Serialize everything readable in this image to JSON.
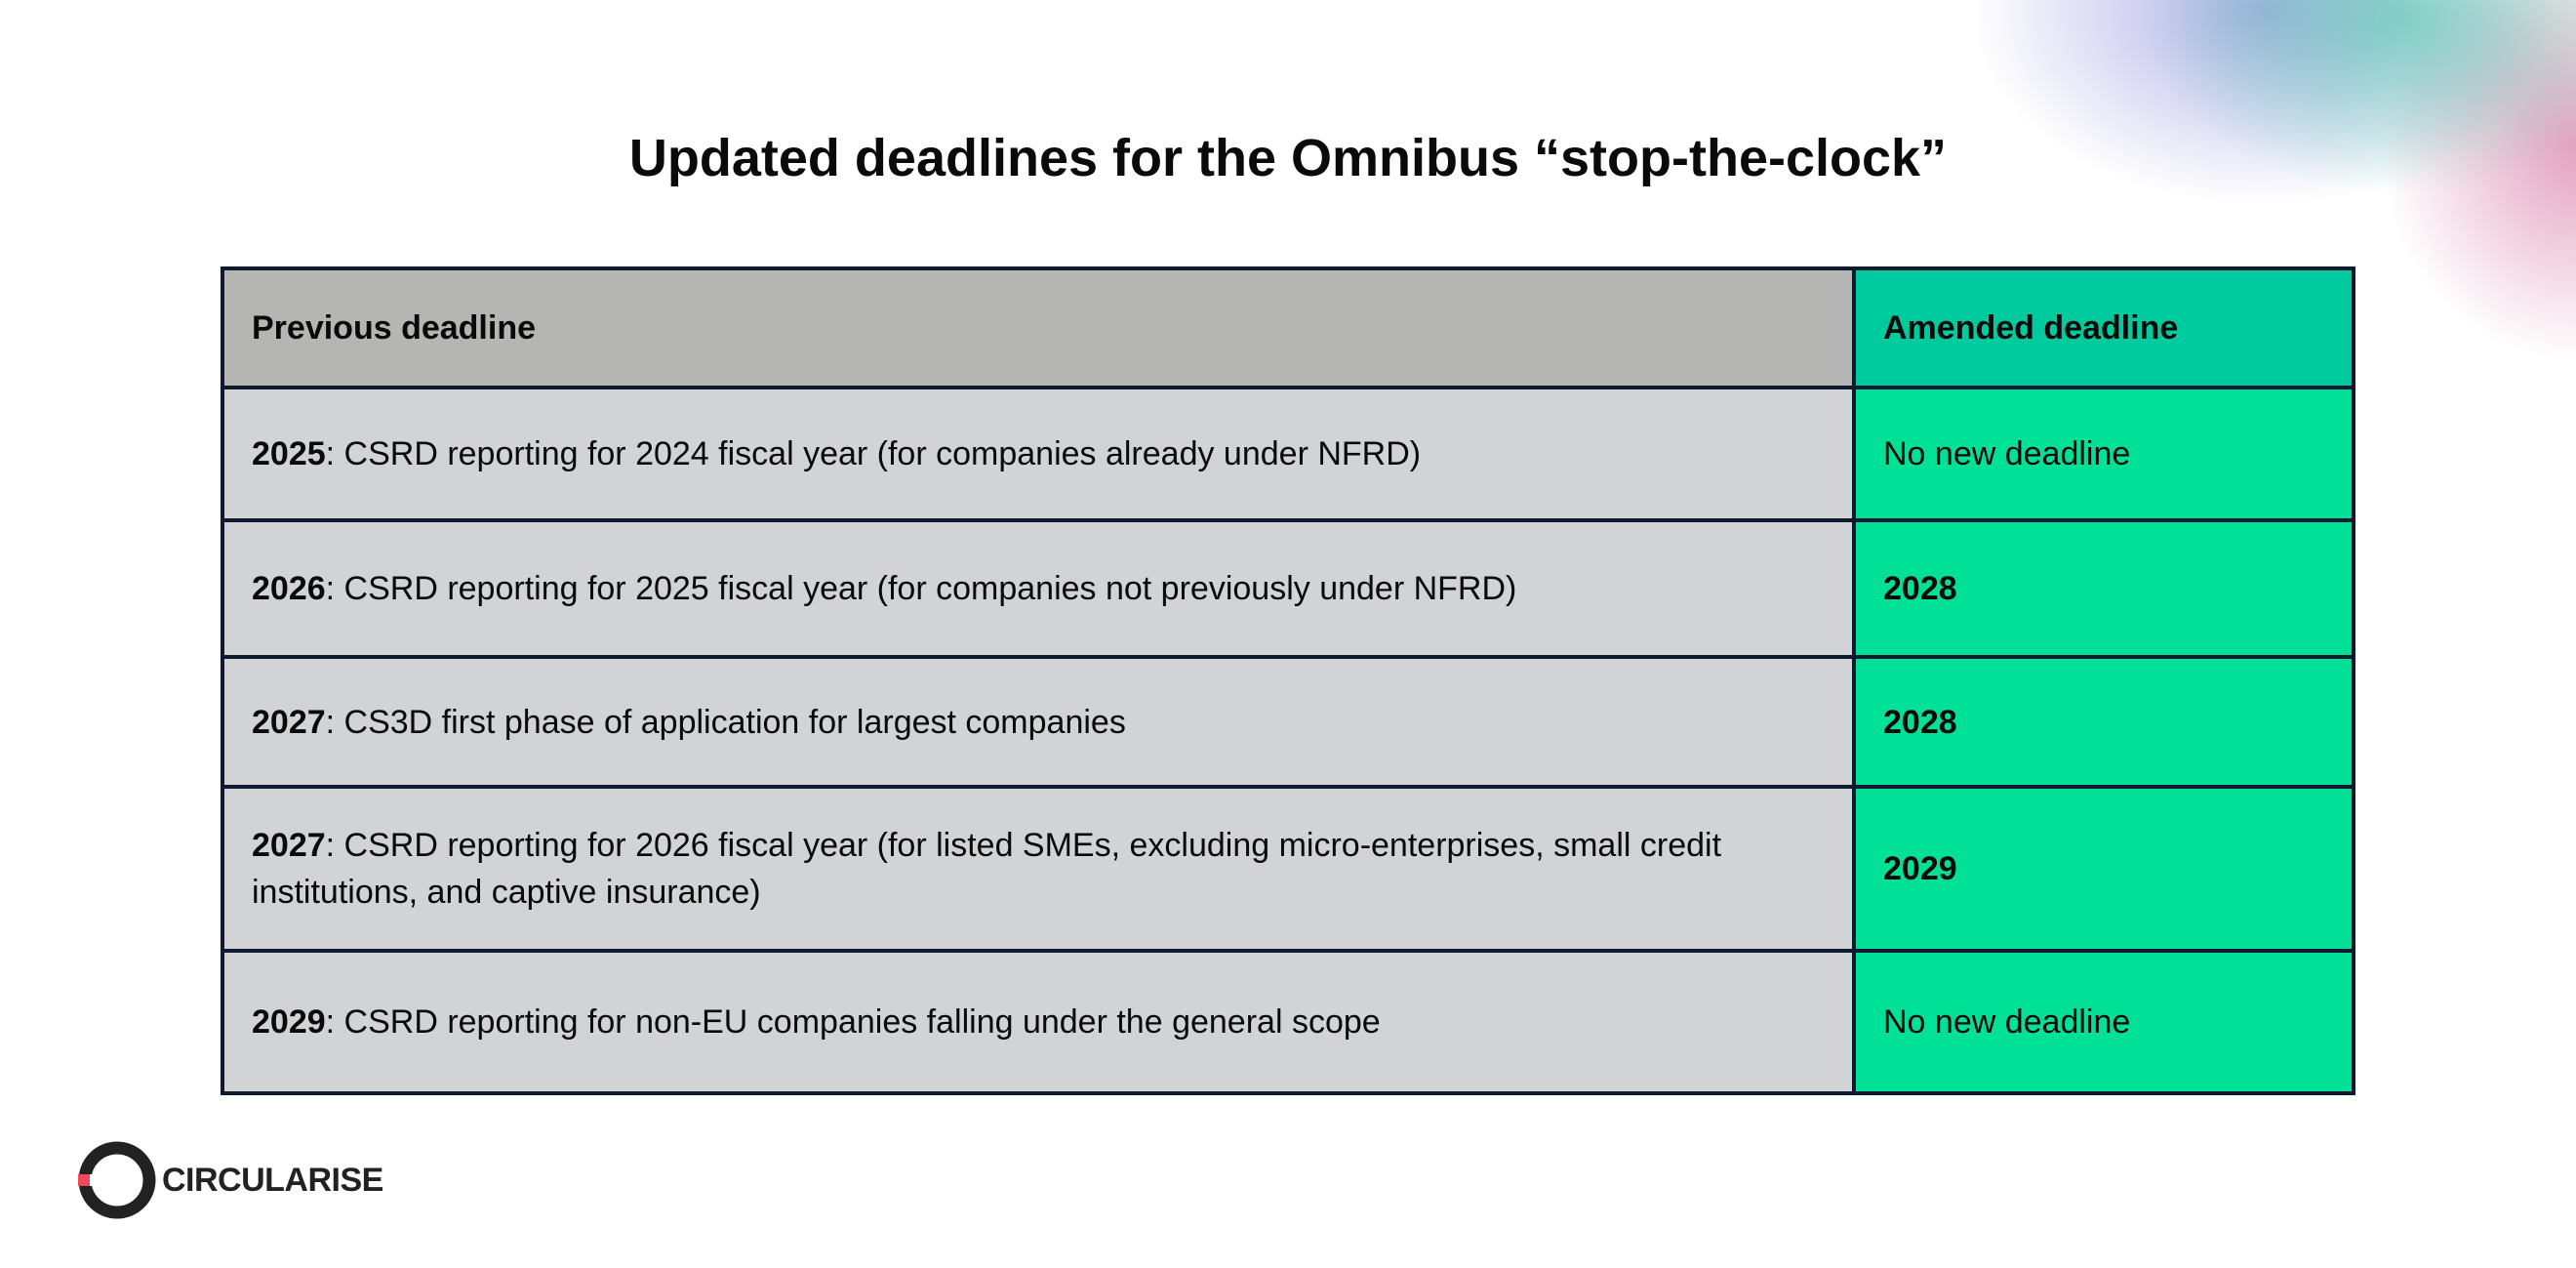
{
  "header": {
    "title": "Updated deadlines for the Omnibus “stop-the-clock”"
  },
  "table": {
    "columns": [
      "Previous deadline",
      "Amended deadline"
    ],
    "rows": [
      {
        "year": "2025",
        "text": ": CSRD reporting for 2024 fiscal year (for companies already under NFRD)",
        "amended": "No new deadline"
      },
      {
        "year": "2026",
        "text": ": CSRD reporting for 2025 fiscal year (for companies not previously under NFRD)",
        "amended": "2028"
      },
      {
        "year": "2027",
        "text": ": CS3D first phase of application for largest companies",
        "amended": "2028"
      },
      {
        "year": "2027",
        "text": ": CSRD reporting for 2026 fiscal year (for listed SMEs, excluding micro-enterprises, small credit institutions, and captive insurance)",
        "amended": "2029"
      },
      {
        "year": "2029",
        "text": ": CSRD reporting for non-EU companies falling under the general scope",
        "amended": "No new deadline"
      }
    ]
  },
  "footer": {
    "logo": "CIRCULARISE"
  }
}
